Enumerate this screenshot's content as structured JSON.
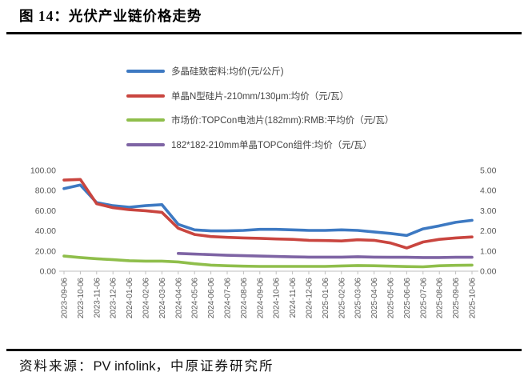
{
  "title": "图 14：光伏产业链价格走势",
  "footer": {
    "prefix": "资料来源：",
    "source_en": "PV infolink",
    "source_cn": "，中原证券研究所"
  },
  "chart_data": {
    "type": "line",
    "grid": false,
    "legend_position": "top",
    "axis_color": "#bfbfbf",
    "tick_label_color": "#595959",
    "x": [
      "2023-09-06",
      "2023-10-06",
      "2023-11-06",
      "2023-12-06",
      "2024-01-06",
      "2024-02-06",
      "2024-03-06",
      "2024-04-06",
      "2024-05-06",
      "2024-06-06",
      "2024-07-06",
      "2024-08-06",
      "2024-09-06",
      "2024-10-06",
      "2024-11-06",
      "2024-12-06",
      "2025-01-06",
      "2025-02-06",
      "2025-03-06",
      "2025-04-06",
      "2025-05-06",
      "2025-06-06",
      "2025-07-06",
      "2025-08-06",
      "2025-09-06",
      "2025-10-06"
    ],
    "left_axis": {
      "min": 0,
      "max": 100,
      "ticks": [
        "0.00",
        "20.00",
        "40.00",
        "60.00",
        "80.00",
        "100.00"
      ]
    },
    "right_axis": {
      "min": 0,
      "max": 5,
      "ticks": [
        "0.00",
        "1.00",
        "2.00",
        "3.00",
        "4.00",
        "5.00"
      ]
    },
    "series": [
      {
        "name": "多晶硅致密料:均价(元/公斤)",
        "color": "#3d79c2",
        "axis": "left",
        "values": [
          82,
          85.5,
          68,
          65,
          63.5,
          65,
          66,
          46.5,
          41,
          40,
          40,
          40.5,
          41.5,
          41.5,
          41,
          40.5,
          40.5,
          41,
          40.5,
          39,
          37.5,
          35.5,
          42,
          45,
          48.5,
          50.5
        ]
      },
      {
        "name": "单晶N型硅片-210mm/130μm:均价（元/瓦）",
        "color": "#c9453f",
        "axis": "right",
        "values": [
          4.52,
          4.55,
          3.35,
          3.15,
          3.05,
          3.0,
          2.92,
          2.13,
          1.82,
          1.72,
          1.68,
          1.65,
          1.63,
          1.6,
          1.58,
          1.53,
          1.52,
          1.5,
          1.56,
          1.53,
          1.4,
          1.15,
          1.45,
          1.58,
          1.65,
          1.7
        ]
      },
      {
        "name": "市场价:TOPCon电池片(182mm):RMB:平均价（元/瓦）",
        "color": "#8fbe4b",
        "axis": "right",
        "values": [
          0.75,
          0.68,
          0.62,
          0.57,
          0.52,
          0.5,
          0.5,
          0.46,
          0.37,
          0.3,
          0.27,
          0.25,
          0.24,
          0.24,
          0.24,
          0.24,
          0.24,
          0.26,
          0.28,
          0.27,
          0.25,
          0.23,
          0.22,
          0.27,
          0.29,
          0.3
        ]
      },
      {
        "name": "182*182-210mm单晶TOPCon组件:均价（元/瓦）",
        "color": "#7e64a4",
        "axis": "right",
        "values": [
          null,
          null,
          null,
          null,
          null,
          null,
          null,
          0.88,
          0.85,
          0.82,
          0.79,
          0.77,
          0.75,
          0.73,
          0.71,
          0.7,
          0.7,
          0.7,
          0.72,
          0.7,
          0.69,
          0.69,
          0.68,
          0.68,
          0.69,
          0.69
        ]
      }
    ]
  }
}
